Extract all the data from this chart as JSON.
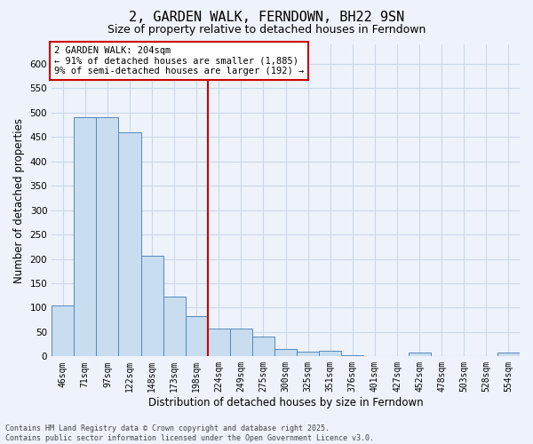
{
  "title_line1": "2, GARDEN WALK, FERNDOWN, BH22 9SN",
  "title_line2": "Size of property relative to detached houses in Ferndown",
  "xlabel": "Distribution of detached houses by size in Ferndown",
  "ylabel": "Number of detached properties",
  "categories": [
    "46sqm",
    "71sqm",
    "97sqm",
    "122sqm",
    "148sqm",
    "173sqm",
    "198sqm",
    "224sqm",
    "249sqm",
    "275sqm",
    "300sqm",
    "325sqm",
    "351sqm",
    "376sqm",
    "401sqm",
    "427sqm",
    "452sqm",
    "478sqm",
    "503sqm",
    "528sqm",
    "554sqm"
  ],
  "values": [
    105,
    490,
    490,
    460,
    207,
    123,
    83,
    57,
    57,
    40,
    15,
    10,
    12,
    2,
    0,
    0,
    7,
    0,
    0,
    0,
    7
  ],
  "bar_color": "#c8ddf0",
  "bar_edge_color": "#5588bb",
  "grid_color": "#ccd8e8",
  "vline_color": "#cc0000",
  "annotation_text": "2 GARDEN WALK: 204sqm\n← 91% of detached houses are smaller (1,885)\n9% of semi-detached houses are larger (192) →",
  "annotation_box_color": "#ffffff",
  "annotation_box_edge": "#cc0000",
  "ylim": [
    0,
    640
  ],
  "yticks": [
    0,
    50,
    100,
    150,
    200,
    250,
    300,
    350,
    400,
    450,
    500,
    550,
    600
  ],
  "footer": "Contains HM Land Registry data © Crown copyright and database right 2025.\nContains public sector information licensed under the Open Government Licence v3.0.",
  "bg_color": "#eef2fb",
  "title_fontsize": 11,
  "subtitle_fontsize": 9,
  "tick_fontsize": 7,
  "axis_label_fontsize": 8.5,
  "annotation_fontsize": 7.5,
  "footer_fontsize": 6
}
